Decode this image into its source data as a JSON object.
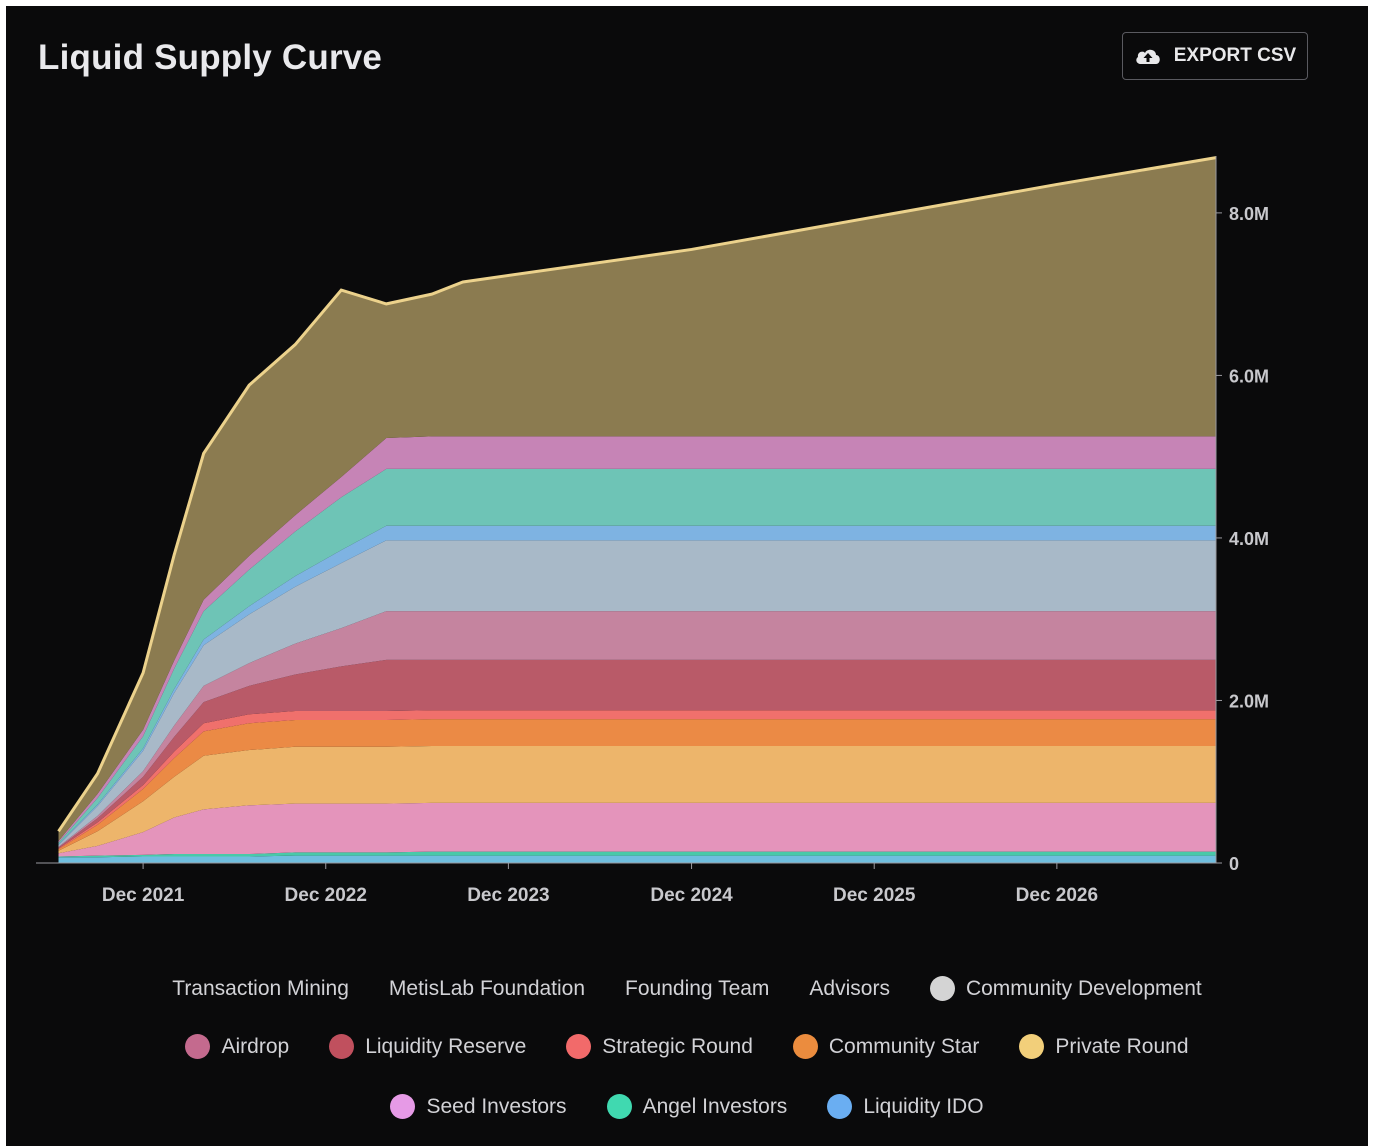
{
  "title": "Liquid Supply Curve",
  "export_button": {
    "label": "EXPORT CSV",
    "icon": "cloud-upload-icon"
  },
  "colors": {
    "background": "#0a0a0b",
    "axis": "#9a9aa0",
    "text": "#d2d2d6"
  },
  "legend": {
    "rows": [
      [
        {
          "name": "Transaction Mining",
          "dot": false
        },
        {
          "name": "MetisLab Foundation",
          "dot": false
        },
        {
          "name": "Founding Team",
          "dot": false
        },
        {
          "name": "Advisors",
          "dot": false
        },
        {
          "name": "Community Development",
          "dot": true,
          "color": "#d4d4d4"
        }
      ],
      [
        {
          "name": "Airdrop",
          "dot": true,
          "color": "#c46a8e"
        },
        {
          "name": "Liquidity Reserve",
          "dot": true,
          "color": "#c0505e"
        },
        {
          "name": "Strategic Round",
          "dot": true,
          "color": "#f26a6a"
        },
        {
          "name": "Community Star",
          "dot": true,
          "color": "#eb8c3e"
        },
        {
          "name": "Private Round",
          "dot": true,
          "color": "#f2cf7a"
        }
      ],
      [
        {
          "name": "Seed Investors",
          "dot": true,
          "color": "#e69ae6"
        },
        {
          "name": "Angel Investors",
          "dot": true,
          "color": "#40d9b0"
        },
        {
          "name": "Liquidity IDO",
          "dot": true,
          "color": "#6aaef2"
        }
      ]
    ]
  },
  "chart_data": {
    "type": "area",
    "stacked": true,
    "x_axis": {
      "type": "time",
      "tick_labels": [
        "Dec 2021",
        "Dec 2022",
        "Dec 2023",
        "Dec 2024",
        "Dec 2025",
        "Dec 2026"
      ]
    },
    "y_axis": {
      "position": "right",
      "tick_values": [
        0,
        2000000,
        4000000,
        6000000,
        8000000
      ],
      "tick_labels": [
        "0",
        "2.0M",
        "4.0M",
        "6.0M",
        "8.0M"
      ],
      "ylim": [
        0,
        8700000
      ]
    },
    "grid": false,
    "legend_position": "bottom",
    "x_dates": [
      "2021-06-15",
      "2021-09-01",
      "2021-12-01",
      "2022-02-01",
      "2022-04-01",
      "2022-07-01",
      "2022-10-01",
      "2023-01-01",
      "2023-04-01",
      "2023-07-01",
      "2023-09-01",
      "2024-12-01",
      "2025-12-01",
      "2026-12-01",
      "2027-10-15"
    ],
    "series": [
      {
        "name": "Liquidity IDO",
        "color": "#6fbedf",
        "values": [
          0.07,
          0.07,
          0.08,
          0.08,
          0.08,
          0.08,
          0.09,
          0.09,
          0.09,
          0.09,
          0.09,
          0.09,
          0.09,
          0.09,
          0.09
        ]
      },
      {
        "name": "Angel Investors",
        "color": "#49c9a9",
        "values": [
          0.01,
          0.02,
          0.02,
          0.03,
          0.03,
          0.03,
          0.04,
          0.04,
          0.04,
          0.05,
          0.05,
          0.05,
          0.05,
          0.05,
          0.05
        ]
      },
      {
        "name": "Seed Investors",
        "color": "#e494bb",
        "values": [
          0.04,
          0.12,
          0.28,
          0.45,
          0.55,
          0.6,
          0.6,
          0.6,
          0.6,
          0.6,
          0.6,
          0.6,
          0.6,
          0.6,
          0.6
        ]
      },
      {
        "name": "Private Round",
        "color": "#edb56b",
        "values": [
          0.03,
          0.18,
          0.38,
          0.5,
          0.66,
          0.68,
          0.7,
          0.7,
          0.7,
          0.7,
          0.7,
          0.7,
          0.7,
          0.7,
          0.7
        ]
      },
      {
        "name": "Community Star",
        "color": "#eb8a45",
        "values": [
          0.02,
          0.08,
          0.15,
          0.23,
          0.3,
          0.33,
          0.33,
          0.33,
          0.33,
          0.33,
          0.33,
          0.33,
          0.33,
          0.33,
          0.33
        ]
      },
      {
        "name": "Strategic Round",
        "color": "#f0706c",
        "values": [
          0.01,
          0.03,
          0.05,
          0.08,
          0.1,
          0.11,
          0.11,
          0.11,
          0.11,
          0.11,
          0.11,
          0.11,
          0.11,
          0.11,
          0.11
        ]
      },
      {
        "name": "Liquidity Reserve",
        "color": "#b95a68",
        "values": [
          0.01,
          0.05,
          0.1,
          0.18,
          0.26,
          0.35,
          0.45,
          0.55,
          0.63,
          0.62,
          0.62,
          0.62,
          0.62,
          0.62,
          0.62
        ]
      },
      {
        "name": "Airdrop",
        "color": "#c5849f",
        "values": [
          0.01,
          0.03,
          0.07,
          0.14,
          0.2,
          0.28,
          0.38,
          0.47,
          0.6,
          0.6,
          0.6,
          0.6,
          0.6,
          0.6,
          0.6
        ]
      },
      {
        "name": "Community Development",
        "color": "#a8b9c8",
        "values": [
          0.02,
          0.12,
          0.25,
          0.4,
          0.5,
          0.6,
          0.7,
          0.8,
          0.87,
          0.87,
          0.87,
          0.87,
          0.87,
          0.87,
          0.87
        ]
      },
      {
        "name": "Liquidity IDO",
        "color": "#7eb3e2",
        "values": [
          0.01,
          0.02,
          0.03,
          0.05,
          0.07,
          0.1,
          0.13,
          0.16,
          0.18,
          0.18,
          0.18,
          0.18,
          0.18,
          0.18,
          0.18
        ]
      },
      {
        "name": "Angel Investors",
        "color": "#6ec4b6",
        "values": [
          0.02,
          0.08,
          0.15,
          0.25,
          0.35,
          0.45,
          0.55,
          0.65,
          0.7,
          0.7,
          0.7,
          0.7,
          0.7,
          0.7,
          0.7
        ]
      },
      {
        "name": "Seed Investors",
        "color": "#c684b6",
        "values": [
          0.02,
          0.05,
          0.08,
          0.1,
          0.14,
          0.17,
          0.2,
          0.25,
          0.38,
          0.4,
          0.4,
          0.4,
          0.4,
          0.4,
          0.4
        ]
      },
      {
        "name": "Transaction Mining",
        "color": "#8b7b50",
        "line_color": "#ecd28c",
        "values": [
          0.12,
          0.25,
          0.7,
          1.3,
          1.8,
          2.1,
          2.1,
          2.3,
          1.65,
          1.75,
          1.9,
          2.3,
          2.7,
          3.1,
          3.43
        ]
      }
    ],
    "values_unit": "million tokens (stack increments, estimated)"
  }
}
